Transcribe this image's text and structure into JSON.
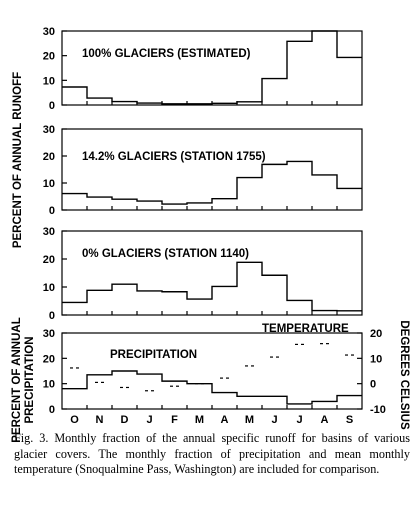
{
  "chart_data": [
    {
      "type": "step",
      "panel_label": "100% GLACIERS (ESTIMATED)",
      "categories": [
        "O",
        "N",
        "D",
        "J",
        "F",
        "M",
        "A",
        "M",
        "J",
        "J",
        "A",
        "S"
      ],
      "values": [
        7.3,
        2.8,
        1.4,
        0.8,
        0.5,
        0.5,
        0.7,
        1.3,
        10.7,
        25.8,
        30.0,
        19.3
      ],
      "yticks": [
        0,
        10,
        20,
        30
      ],
      "ylim": [
        0,
        30
      ]
    },
    {
      "type": "step",
      "panel_label": "14.2% GLACIERS (STATION 1755)",
      "categories": [
        "O",
        "N",
        "D",
        "J",
        "F",
        "M",
        "A",
        "M",
        "J",
        "J",
        "A",
        "S"
      ],
      "values": [
        6.1,
        4.8,
        4.0,
        3.3,
        2.2,
        2.6,
        4.2,
        12.0,
        16.9,
        18.0,
        13.0,
        8.0
      ],
      "yticks": [
        0,
        10,
        20,
        30
      ],
      "ylim": [
        0,
        30
      ]
    },
    {
      "type": "step",
      "panel_label": "0% GLACIERS (STATION 1140)",
      "categories": [
        "O",
        "N",
        "D",
        "J",
        "F",
        "M",
        "A",
        "M",
        "J",
        "J",
        "A",
        "S"
      ],
      "values": [
        4.5,
        8.8,
        11.0,
        8.6,
        8.3,
        5.7,
        10.2,
        18.8,
        14.2,
        5.2,
        1.6,
        1.5
      ],
      "yticks": [
        0,
        10,
        20,
        30
      ],
      "ylim": [
        0,
        30
      ]
    },
    {
      "type": "step",
      "panel_label": "PRECIPITATION",
      "series_label_2": "TEMPERATURE",
      "categories": [
        "O",
        "N",
        "D",
        "J",
        "F",
        "M",
        "A",
        "M",
        "J",
        "J",
        "A",
        "S"
      ],
      "precipitation": [
        8.0,
        13.5,
        15.0,
        13.8,
        11.0,
        10.0,
        6.5,
        5.0,
        5.0,
        2.0,
        3.0,
        5.3
      ],
      "temperature": [
        6.2,
        0.5,
        -1.5,
        -2.8,
        -1.0,
        0.0,
        2.2,
        7.0,
        10.5,
        15.5,
        15.8,
        11.3
      ],
      "yticks": [
        0,
        10,
        20,
        30
      ],
      "ylim": [
        0,
        30
      ],
      "ylabel": "PERCENT OF ANNUAL PRECIPITATION",
      "y2ticks": [
        -10,
        0,
        10,
        20
      ],
      "y2lim": [
        -10,
        20
      ],
      "y2label": "DEGREES CELSIUS",
      "xticks": [
        "O",
        "N",
        "D",
        "J",
        "F",
        "M",
        "A",
        "M",
        "J",
        "J",
        "A",
        "S"
      ]
    }
  ],
  "shared_ylabel": "PERCENT OF ANNUAL RUNOFF",
  "caption": "Fig. 3.   Monthly fraction of the annual specific runoff for basins of various glacier covers. The monthly fraction of precipitation and mean monthly temperature (Snoqualmine Pass, Washington) are included for comparison."
}
